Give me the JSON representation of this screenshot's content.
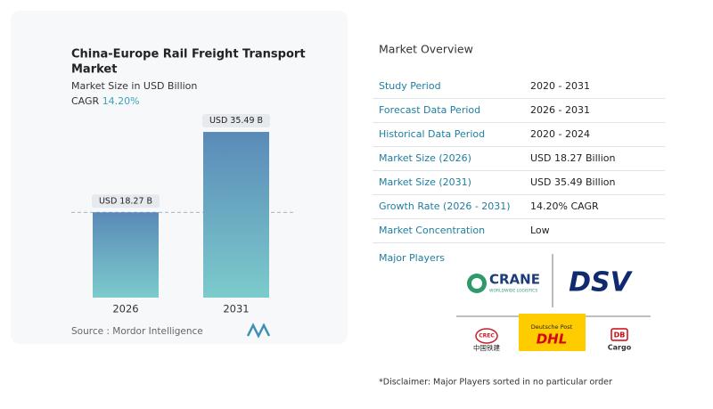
{
  "chart_data": {
    "type": "bar",
    "title": "China-Europe Rail Freight Transport Market",
    "subtitle": "Market Size in USD Billion",
    "cagr_label": "CAGR",
    "cagr": "14.20%",
    "categories": [
      "2026",
      "2031"
    ],
    "values": [
      18.27,
      35.49
    ],
    "value_labels": [
      "USD 18.27 B",
      "USD 35.49 B"
    ],
    "source": "Source :  Mordor Intelligence"
  },
  "overview": {
    "title": "Market Overview",
    "rows": [
      [
        "Study Period",
        "2020 - 2031"
      ],
      [
        "Forecast Data Period",
        "2026 - 2031"
      ],
      [
        "Historical Data Period",
        "2020 - 2024"
      ],
      [
        "Market Size (2026)",
        "USD 18.27 Billion"
      ],
      [
        "Market Size (2031)",
        "USD 35.49 Billion"
      ],
      [
        "Growth Rate (2026 - 2031)",
        "14.20% CAGR"
      ],
      [
        "Market Concentration",
        "Low"
      ]
    ]
  },
  "players": {
    "title": "Major Players",
    "logos": [
      {
        "name": "CRANE",
        "tagline": "WORLDWIDE LOGISTICS"
      },
      {
        "name": "DSV"
      },
      {
        "name": "中国铁建",
        "mark": "CREC"
      },
      {
        "name": "DHL",
        "tagline": "Deutsche Post"
      },
      {
        "name": "DB",
        "tagline": "Cargo"
      }
    ]
  },
  "disclaimer": "*Disclaimer: Major Players sorted in no particular order"
}
